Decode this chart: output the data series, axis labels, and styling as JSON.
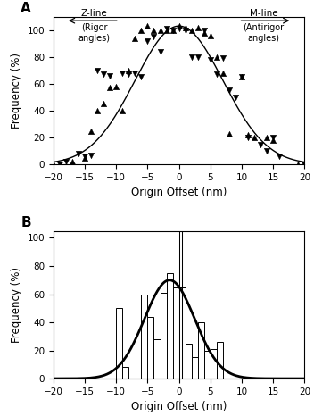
{
  "panel_A": {
    "up_x": [
      -20,
      -17,
      -15,
      -14,
      -13,
      -12,
      -11,
      -10,
      -9,
      -8,
      -7,
      -6,
      -5,
      -4,
      -3,
      -2,
      -1,
      0,
      1,
      2,
      3,
      4,
      5,
      6,
      7,
      8,
      10,
      11,
      12,
      14,
      15,
      19,
      20
    ],
    "up_y": [
      0,
      2,
      5,
      25,
      40,
      45,
      57,
      58,
      40,
      70,
      94,
      100,
      103,
      100,
      100,
      100,
      100,
      103,
      102,
      100,
      102,
      98,
      96,
      80,
      68,
      23,
      65,
      22,
      20,
      20,
      18,
      0,
      0
    ],
    "down_x": [
      -19,
      -18,
      -16,
      -15,
      -14,
      -13,
      -12,
      -11,
      -9,
      -8,
      -7,
      -6,
      -5,
      -4,
      -3,
      -2,
      -1,
      0,
      1,
      2,
      3,
      4,
      5,
      6,
      7,
      8,
      9,
      10,
      11,
      13,
      14,
      15,
      16,
      20
    ],
    "down_y": [
      0,
      2,
      8,
      6,
      7,
      70,
      67,
      66,
      68,
      67,
      68,
      65,
      92,
      95,
      84,
      101,
      100,
      101,
      100,
      80,
      80,
      100,
      78,
      67,
      79,
      55,
      50,
      65,
      20,
      15,
      10,
      20,
      6,
      0
    ],
    "gauss_mean": 0,
    "gauss_sigma": 7.0,
    "gauss_amplitude": 103,
    "xlim": [
      -20,
      20
    ],
    "ylim": [
      0,
      110
    ],
    "yticks": [
      0,
      20,
      40,
      60,
      80,
      100
    ],
    "xticks": [
      -20,
      -15,
      -10,
      -5,
      0,
      5,
      10,
      15,
      20
    ],
    "xlabel": "Origin Offset (nm)",
    "ylabel": "Frequency (%)"
  },
  "panel_B": {
    "bar_lefts": [
      -10,
      -9,
      -8,
      -7,
      -6,
      -5,
      -4,
      -3,
      -2,
      -1,
      0,
      1,
      2,
      3,
      4,
      5,
      6,
      7,
      8
    ],
    "bar_heights": [
      50,
      8,
      0,
      0,
      60,
      44,
      28,
      61,
      75,
      65,
      65,
      25,
      15,
      40,
      20,
      21,
      26,
      0,
      0
    ],
    "bar_width": 1.0,
    "vline_x": [
      0,
      0.5
    ],
    "gauss_mean": -1.5,
    "gauss_sigma": 4.0,
    "gauss_amplitude": 70,
    "xlim": [
      -20,
      20
    ],
    "ylim": [
      0,
      105
    ],
    "yticks": [
      0,
      20,
      40,
      60,
      80,
      100
    ],
    "xticks": [
      -20,
      -15,
      -10,
      -5,
      0,
      5,
      10,
      15,
      20
    ],
    "xlabel": "Origin Offset (nm)",
    "ylabel": "Frequency (%)"
  }
}
